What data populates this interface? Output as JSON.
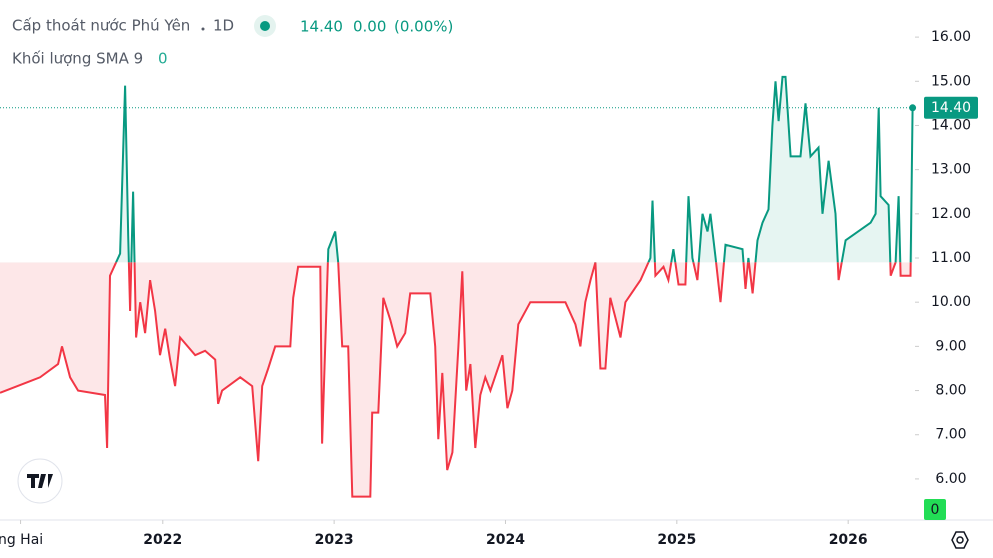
{
  "chart_data": {
    "type": "baseline",
    "title": "Cấp thoát nước Phú Yên",
    "interval": "1D",
    "legend": {
      "price": "14.40",
      "change": "0.00",
      "change_pct": "(0.00%)"
    },
    "volume_indicator": {
      "name": "Khối lượng SMA 9",
      "value": "0"
    },
    "baseline": 10.9,
    "up_color": "#089981",
    "down_color": "#f23645",
    "last_price": {
      "value": 14.4,
      "label": "14.40"
    },
    "x": [
      2021.05,
      2021.284,
      2021.389,
      2021.412,
      2021.459,
      2021.506,
      2021.663,
      2021.675,
      2021.692,
      2021.751,
      2021.78,
      2021.798,
      2021.809,
      2021.827,
      2021.844,
      2021.868,
      2021.897,
      2021.926,
      2021.955,
      2021.984,
      2022.014,
      2022.043,
      2022.072,
      2022.101,
      2022.189,
      2022.247,
      2022.306,
      2022.323,
      2022.346,
      2022.452,
      2022.522,
      2022.557,
      2022.58,
      2022.615,
      2022.656,
      2022.744,
      2022.761,
      2022.79,
      2022.919,
      2022.93,
      2022.966,
      2023.006,
      2023.024,
      2023.047,
      2023.082,
      2023.106,
      2023.211,
      2023.222,
      2023.258,
      2023.287,
      2023.328,
      2023.368,
      2023.415,
      2023.444,
      2023.561,
      2023.59,
      2023.608,
      2023.631,
      2023.66,
      2023.69,
      2023.725,
      2023.748,
      2023.771,
      2023.795,
      2023.824,
      2023.853,
      2023.882,
      2023.912,
      2023.982,
      2024.011,
      2024.04,
      2024.075,
      2024.145,
      2024.35,
      2024.408,
      2024.437,
      2024.466,
      2024.496,
      2024.525,
      2024.554,
      2024.583,
      2024.612,
      2024.671,
      2024.7,
      2024.788,
      2024.846,
      2024.858,
      2024.875,
      2024.922,
      2024.951,
      2024.98,
      2025.01,
      2025.05,
      2025.068,
      2025.091,
      2025.12,
      2025.15,
      2025.179,
      2025.196,
      2025.226,
      2025.255,
      2025.284,
      2025.383,
      2025.401,
      2025.418,
      2025.442,
      2025.471,
      2025.5,
      2025.535,
      2025.558,
      2025.576,
      2025.594,
      2025.617,
      2025.634,
      2025.664,
      2025.722,
      2025.751,
      2025.78,
      2025.827,
      2025.85,
      2025.886,
      2025.926,
      2025.944,
      2025.985,
      2026.131,
      2026.16,
      2026.178,
      2026.189,
      2026.236,
      2026.248,
      2026.277,
      2026.294,
      2026.306,
      2026.364,
      2026.376
    ],
    "values": [
      7.95,
      8.3,
      8.6,
      9.0,
      8.3,
      8.0,
      7.9,
      6.7,
      10.6,
      11.1,
      14.9,
      11.5,
      9.8,
      12.5,
      9.2,
      10.0,
      9.3,
      10.5,
      9.8,
      8.8,
      9.4,
      8.7,
      8.1,
      9.2,
      8.8,
      8.9,
      8.7,
      7.7,
      8.0,
      8.3,
      8.1,
      6.4,
      8.1,
      8.5,
      9.0,
      9.0,
      10.1,
      10.8,
      10.8,
      6.8,
      11.2,
      11.6,
      10.9,
      9.0,
      9.0,
      5.6,
      5.6,
      7.5,
      7.5,
      10.1,
      9.6,
      9.0,
      9.3,
      10.2,
      10.2,
      9.0,
      6.9,
      8.4,
      6.2,
      6.6,
      9.0,
      10.7,
      8.0,
      8.6,
      6.7,
      7.9,
      8.3,
      8.0,
      8.8,
      7.6,
      8.0,
      9.5,
      10.0,
      10.0,
      9.5,
      9.0,
      10.0,
      10.5,
      10.9,
      8.5,
      8.5,
      10.1,
      9.2,
      10.0,
      10.5,
      11.0,
      12.3,
      10.6,
      10.8,
      10.5,
      11.2,
      10.4,
      10.4,
      12.4,
      11.0,
      10.5,
      12.0,
      11.6,
      12.0,
      11.0,
      10.0,
      11.3,
      11.2,
      10.3,
      11.0,
      10.2,
      11.4,
      11.8,
      12.1,
      14.0,
      15.0,
      14.1,
      15.1,
      15.1,
      13.3,
      13.3,
      14.5,
      13.3,
      13.5,
      12.0,
      13.2,
      12.0,
      10.5,
      11.4,
      11.8,
      12.0,
      14.4,
      12.4,
      12.2,
      10.6,
      10.9,
      12.4,
      10.6,
      10.6,
      14.4
    ],
    "xlim": [
      2021.05,
      2026.39
    ],
    "xticks": [
      {
        "value": 2021.17,
        "label": "ng Hai"
      },
      2022,
      2023,
      2024,
      2025,
      2026
    ],
    "ylim": [
      5.07,
      16.84
    ],
    "yticks": [
      {
        "value": 16,
        "label": "16.00"
      },
      {
        "value": 15,
        "label": "15.00"
      },
      {
        "value": 14,
        "label": "14.00"
      },
      {
        "value": 13,
        "label": "13.00"
      },
      {
        "value": 12,
        "label": "12.00"
      },
      {
        "value": 11,
        "label": "11.00"
      },
      {
        "value": 10,
        "label": "10.00"
      },
      {
        "value": 9,
        "label": "9.00"
      },
      {
        "value": 8,
        "label": "8.00"
      },
      {
        "value": 7,
        "label": "7.00"
      },
      {
        "value": 6,
        "label": "6.00"
      }
    ]
  }
}
